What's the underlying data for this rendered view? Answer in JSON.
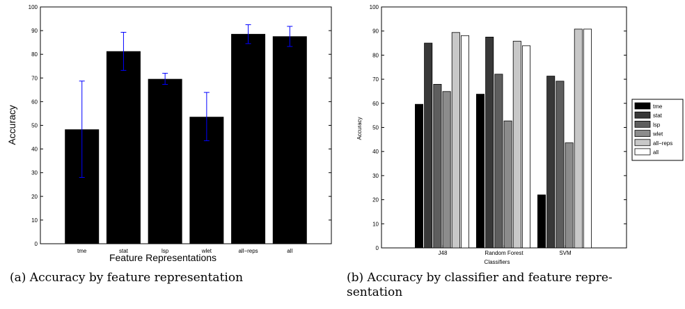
{
  "chart_data": [
    {
      "type": "bar",
      "categories": [
        "tme",
        "stat",
        "lsp",
        "wlet",
        "all−reps",
        "all"
      ],
      "values": [
        48.3,
        81.3,
        69.6,
        53.6,
        88.6,
        87.6
      ],
      "error_low": [
        28.0,
        73.2,
        67.3,
        43.5,
        84.5,
        83.3
      ],
      "error_high": [
        68.7,
        89.3,
        72.0,
        63.9,
        92.5,
        91.8
      ],
      "bar_color": "#000000",
      "error_color": "#0000ff",
      "title": "",
      "xlabel": "Feature Representations",
      "ylabel": "Accuracy",
      "ylim": [
        0,
        100
      ],
      "yticks": [
        0,
        10,
        20,
        30,
        40,
        50,
        60,
        70,
        80,
        90,
        100
      ],
      "grid": false
    },
    {
      "type": "bar",
      "categories": [
        "J48",
        "Random Forest",
        "SVM"
      ],
      "series": [
        {
          "name": "tme",
          "color": "#000000",
          "values": [
            59.6,
            63.8,
            22.0
          ]
        },
        {
          "name": "stat",
          "color": "#383838",
          "values": [
            85.0,
            87.5,
            71.3
          ]
        },
        {
          "name": "lsp",
          "color": "#5e5e5e",
          "values": [
            67.9,
            72.1,
            69.2
          ]
        },
        {
          "name": "wlet",
          "color": "#8c8c8c",
          "values": [
            64.9,
            52.7,
            43.6
          ]
        },
        {
          "name": "all−reps",
          "color": "#c8c8c8",
          "values": [
            89.4,
            85.8,
            90.8
          ]
        },
        {
          "name": "all",
          "color": "#ffffff",
          "values": [
            88.1,
            83.9,
            90.8
          ]
        }
      ],
      "title": "",
      "xlabel": "Classifiers",
      "ylabel": "Accuracy",
      "ylim": [
        0,
        100
      ],
      "yticks": [
        0,
        10,
        20,
        30,
        40,
        50,
        60,
        70,
        80,
        90,
        100
      ],
      "grid": false,
      "legend_position": "right"
    }
  ],
  "captions": {
    "a": "(a) Accuracy by feature representation",
    "b_line1": "(b) Accuracy by classifier and feature repre-",
    "b_line2": "sentation"
  }
}
